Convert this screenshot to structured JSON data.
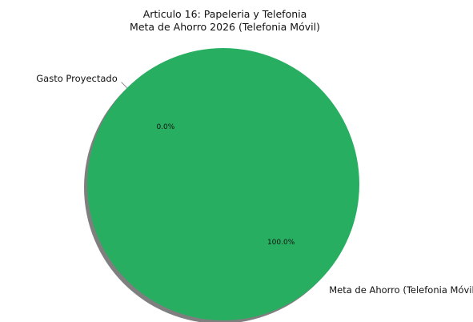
{
  "chart_data": {
    "type": "pie",
    "title": "Articulo 16: Papeleria y Telefonia",
    "subtitle": "Meta de Ahorro 2026 (Telefonia Móvil)",
    "categories": [
      "Gasto Proyectado",
      "Meta de Ahorro (Telefonia Móvil)"
    ],
    "values": [
      0,
      100
    ],
    "percent_labels": [
      "0.0%",
      "100.0%"
    ],
    "colors": [
      "#4285f4",
      "#27ae60"
    ],
    "shadow": true,
    "legend": "none"
  }
}
